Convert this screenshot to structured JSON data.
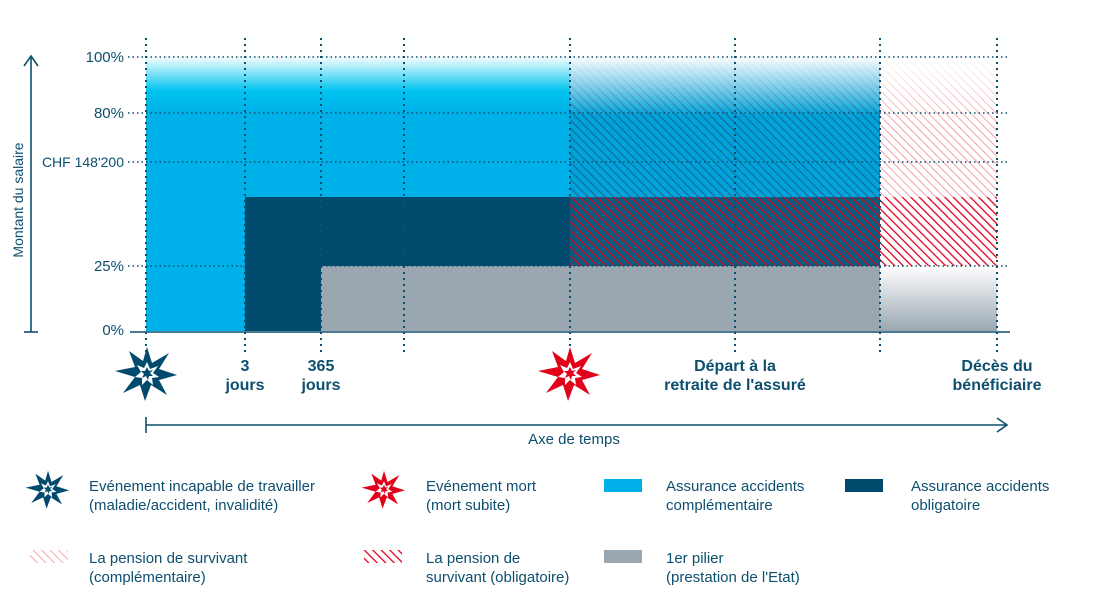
{
  "axis": {
    "y_label": "Montant du salaire",
    "ticks": [
      "100%",
      "80%",
      "CHF 148'200",
      "25%",
      "0%"
    ],
    "x_label": "Axe de temps"
  },
  "timeline": {
    "day3": [
      "3",
      "jours"
    ],
    "day365": [
      "365",
      "jours"
    ],
    "retirement": [
      "Départ à la",
      "retraite de l'assuré"
    ],
    "death": [
      "Décès du",
      "bénéficiaire"
    ]
  },
  "legend": {
    "incapacity": [
      "Evénement incapable de travailler",
      "(maladie/accident, invalidité)"
    ],
    "death_event": [
      "Evénement mort",
      "(mort subite)"
    ],
    "uvg_supp": [
      "Assurance accidents",
      "complémentaire"
    ],
    "uvg_mand": [
      "Assurance accidents",
      "obligatoire"
    ],
    "survivor_supp": [
      "La pension de survivant",
      "(complémentaire)"
    ],
    "survivor_mand": [
      "La pension de",
      "survivant (obligatoire)"
    ],
    "pillar1": [
      "1er pilier",
      "(prestation de l'Etat)"
    ]
  },
  "icons": {
    "incapacity": "star-burst-icon",
    "death": "star-burst-icon"
  },
  "colors": {
    "light_blue": "#00b0e8",
    "dark_blue": "#004a6e",
    "grey": "#9aa7b1",
    "red": "#e2001a",
    "text": "#0d4f6e"
  }
}
